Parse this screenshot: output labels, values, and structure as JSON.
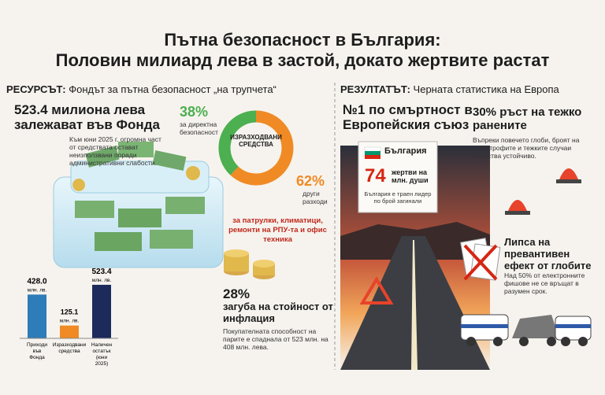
{
  "header": {
    "title_line1": "Пътна безопасност в България:",
    "title_line2": "Половин милиард лева в застой, докато жертвите растат"
  },
  "left": {
    "section_label": "РЕСУРСЪТ:",
    "section_title": "Фондът за пътна безопасност „на трупчета“",
    "headline": "523.4 милиона лева залежават във Фонда",
    "headline_text": "Към юни 2025 г. огромна част от средствата остават неизползвани поради административни слабости.",
    "donut": {
      "center_label": "ИЗРАЗХОДВАНИ СРЕДСТВА",
      "segments": [
        {
          "value": 38,
          "label": "38%",
          "name": "за директна безопасност",
          "color": "#4caf50"
        },
        {
          "value": 62,
          "label": "62%",
          "name": "други разходи",
          "color": "#f08a24"
        }
      ],
      "note": "за патрулки, климатици, ремонти на РПУ-та и офис техника"
    },
    "bar_chart": {
      "categories": [
        "Приходи във Фонда",
        "Изразходвани средства",
        "Наличен остатък (юни 2025)"
      ],
      "values": [
        428,
        125.1,
        523.4
      ],
      "value_labels": [
        "428.0",
        "125.1",
        "523.4"
      ],
      "unit": "млн. лв.",
      "colors": [
        "#2e7cb8",
        "#f08a24",
        "#1d2a5c"
      ]
    },
    "inflation": {
      "figure": "28%",
      "title": "загуба на стойност от инфлация",
      "text": "Покупателната способност на парите е спаднала от 523 млн. на 408 млн. лева."
    }
  },
  "right": {
    "section_label": "РЕЗУЛТАТЪТ:",
    "section_title": "Черната статистика на Европа",
    "headline": "№1 по смъртност в Европейския съюз",
    "banner": {
      "country": "България",
      "figure": "74",
      "figure_unit": "жертви на млн. души",
      "note": "България е траен лидер по брой загинали"
    },
    "injuries": {
      "title": "30% ръст на тежко ранените",
      "text": "Въпреки повечето глоби, броят на катастрофите и тежките случаи нараства устойчиво."
    },
    "fines": {
      "title": "Липса на превантивен ефект от глобите",
      "text": "Над 50% от електронните фишове не се връщат в разумен срок."
    }
  }
}
